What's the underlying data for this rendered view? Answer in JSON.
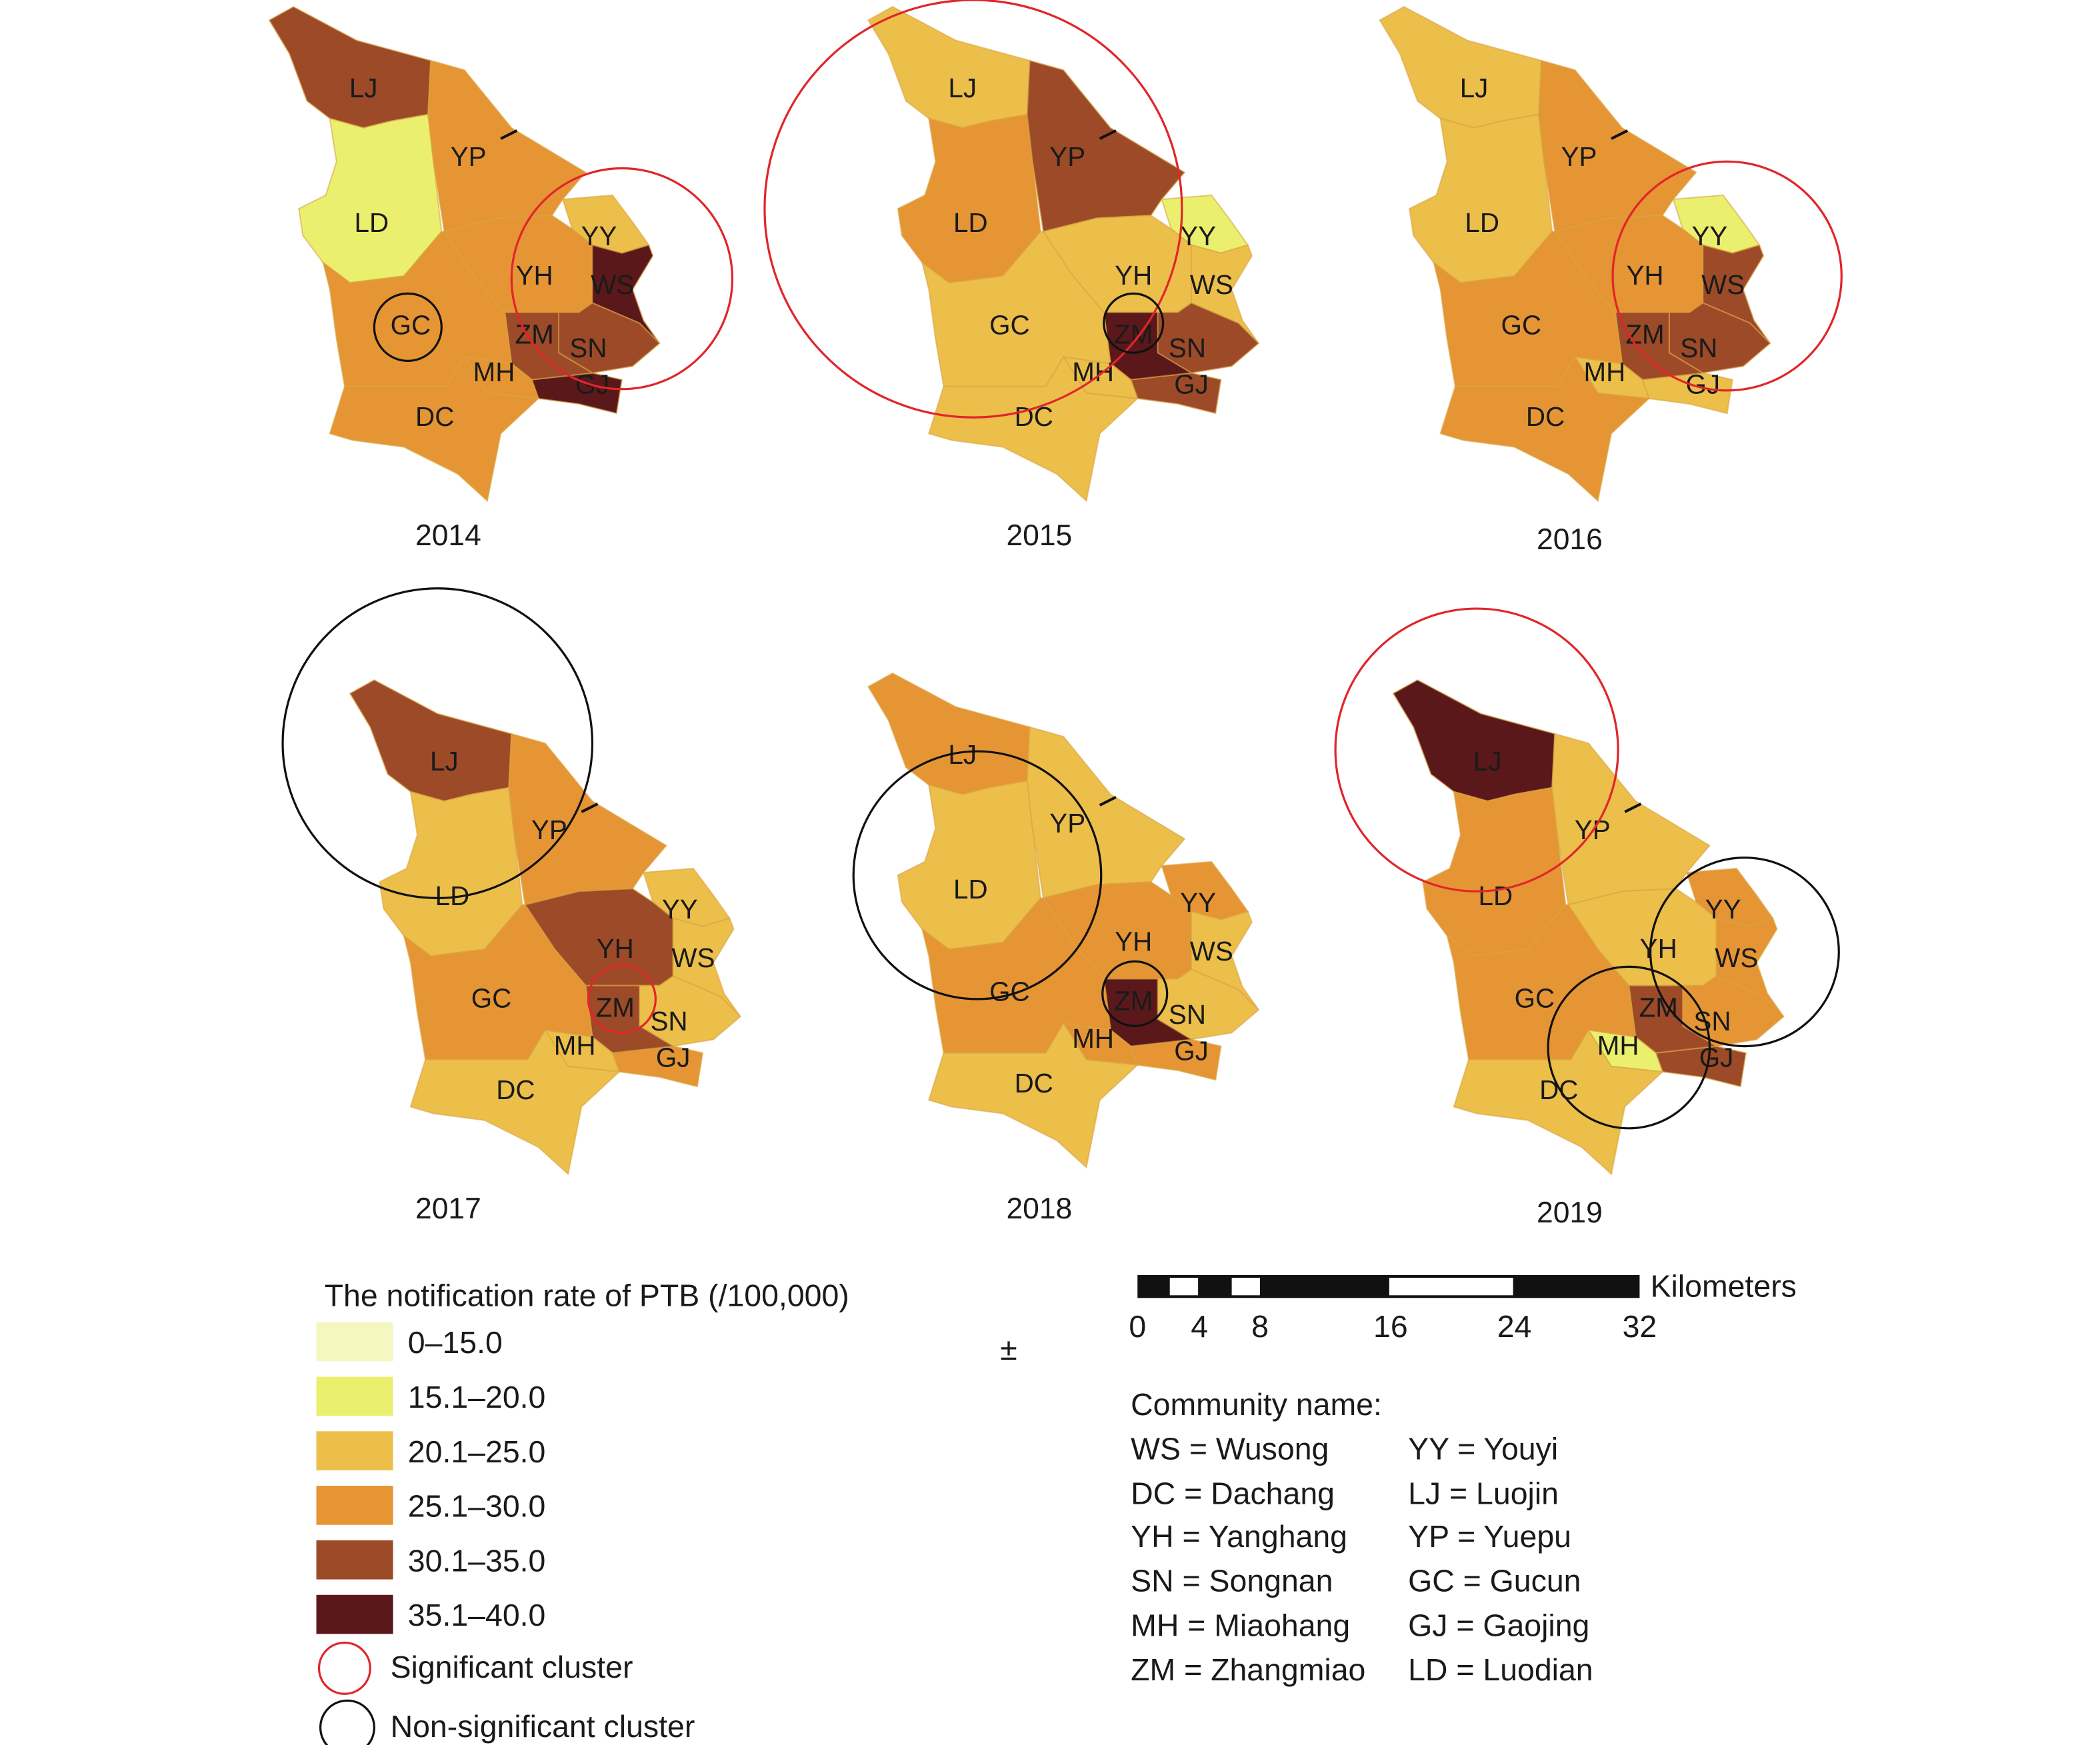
{
  "figure": {
    "panels": [
      {
        "year": "2014",
        "rates": {
          "LJ": "30.1–35.0",
          "LD": "15.1–20.0",
          "YP": "25.1–30.0",
          "YH": "25.1–30.0",
          "YY": "20.1–25.0",
          "WS": "35.1–40.0",
          "SN": "30.1–35.0",
          "GJ": "35.1–40.0",
          "ZM": "30.1–35.0",
          "MH": "25.1–30.0",
          "GC": "25.1–30.0",
          "DC": "25.1–30.0"
        },
        "clusters": [
          {
            "center": "WS",
            "significant": true
          },
          {
            "center": "GC",
            "significant": false
          }
        ]
      },
      {
        "year": "2015",
        "rates": {
          "LJ": "20.1–25.0",
          "LD": "25.1–30.0",
          "YP": "30.1–35.0",
          "YH": "20.1–25.0",
          "YY": "15.1–20.0",
          "WS": "20.1–25.0",
          "SN": "30.1–35.0",
          "GJ": "30.1–35.0",
          "ZM": "35.1–40.0",
          "MH": "20.1–25.0",
          "GC": "20.1–25.0",
          "DC": "20.1–25.0"
        },
        "clusters": [
          {
            "center": "LD",
            "significant": true
          },
          {
            "center": "ZM",
            "significant": false
          }
        ]
      },
      {
        "year": "2016",
        "rates": {
          "LJ": "20.1–25.0",
          "LD": "20.1–25.0",
          "YP": "25.1–30.0",
          "YH": "25.1–30.0",
          "YY": "15.1–20.0",
          "WS": "30.1–35.0",
          "SN": "30.1–35.0",
          "GJ": "20.1–25.0",
          "ZM": "30.1–35.0",
          "MH": "20.1–25.0",
          "GC": "25.1–30.0",
          "DC": "25.1–30.0"
        },
        "clusters": [
          {
            "center": "WS",
            "significant": true
          }
        ]
      },
      {
        "year": "2017",
        "rates": {
          "LJ": "30.1–35.0",
          "LD": "20.1–25.0",
          "YP": "25.1–30.0",
          "YH": "30.1–35.0",
          "YY": "20.1–25.0",
          "WS": "20.1–25.0",
          "SN": "20.1–25.0",
          "GJ": "25.1–30.0",
          "ZM": "30.1–35.0",
          "MH": "20.1–25.0",
          "GC": "25.1–30.0",
          "DC": "20.1–25.0"
        },
        "clusters": [
          {
            "center": "LJ",
            "significant": false
          },
          {
            "center": "ZM",
            "significant": true
          }
        ]
      },
      {
        "year": "2018",
        "rates": {
          "LJ": "25.1–30.0",
          "LD": "20.1–25.0",
          "YP": "20.1–25.0",
          "YH": "25.1–30.0",
          "YY": "25.1–30.0",
          "WS": "20.1–25.0",
          "SN": "20.1–25.0",
          "GJ": "25.1–30.0",
          "ZM": "35.1–40.0",
          "MH": "25.1–30.0",
          "GC": "25.1–30.0",
          "DC": "20.1–25.0"
        },
        "clusters": [
          {
            "center": "LD",
            "significant": false
          },
          {
            "center": "ZM",
            "significant": false
          }
        ]
      },
      {
        "year": "2019",
        "rates": {
          "LJ": "35.1–40.0",
          "LD": "25.1–30.0",
          "YP": "20.1–25.0",
          "YH": "20.1–25.0",
          "YY": "25.1–30.0",
          "WS": "25.1–30.0",
          "SN": "25.1–30.0",
          "GJ": "30.1–35.0",
          "ZM": "30.1–35.0",
          "MH": "15.1–20.0",
          "GC": "25.1–30.0",
          "DC": "20.1–25.0"
        },
        "clusters": [
          {
            "center": "LJ",
            "significant": true
          },
          {
            "center": "WS",
            "significant": false
          },
          {
            "center": "MH",
            "significant": false
          }
        ]
      }
    ]
  },
  "legend": {
    "title": "The notification rate of PTB (/100,000)",
    "classes": [
      {
        "label": "0–15.0",
        "color": "#f4f7c0"
      },
      {
        "label": "15.1–20.0",
        "color": "#eaf06e"
      },
      {
        "label": "20.1–25.0",
        "color": "#ecbf4b"
      },
      {
        "label": "25.1–30.0",
        "color": "#e69534"
      },
      {
        "label": "30.1–35.0",
        "color": "#9c4a28"
      },
      {
        "label": "35.1–40.0",
        "color": "#5a181b"
      }
    ],
    "significant_label": "Significant cluster",
    "significant_color": "#e0262b",
    "nonsignificant_label": "Non-significant cluster",
    "nonsignificant_color": "#111111"
  },
  "north_symbol": "±",
  "scale_bar": {
    "unit": "Kilometers",
    "ticks": [
      "0",
      "4",
      "8",
      "16",
      "24",
      "32"
    ]
  },
  "community": {
    "title": "Community name:",
    "left": [
      "WS = Wusong",
      "DC = Dachang",
      "YH = Yanghang",
      "SN = Songnan",
      "MH = Miaohang",
      "ZM = Zhangmiao"
    ],
    "right": [
      "YY = Youyi",
      "LJ = Luojin",
      "YP = Yuepu",
      "GC = Gucun",
      "GJ = Gaojing",
      "LD = Luodian"
    ]
  }
}
